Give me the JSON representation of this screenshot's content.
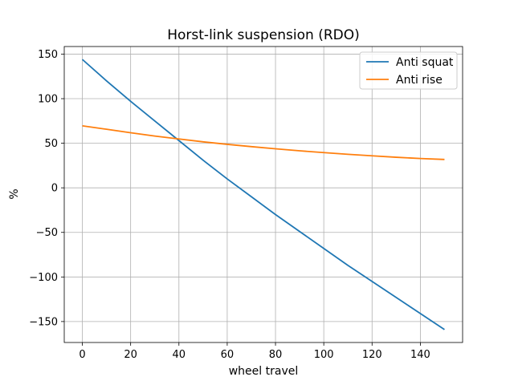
{
  "chart_data": {
    "type": "line",
    "title": "Horst-link suspension (RDO)",
    "xlabel": "wheel travel",
    "ylabel": "%",
    "xlim": [
      -7.5,
      157.5
    ],
    "ylim": [
      -173.5,
      158.5
    ],
    "xticks": [
      0,
      20,
      40,
      60,
      80,
      100,
      120,
      140
    ],
    "yticks": [
      -150,
      -100,
      -50,
      0,
      50,
      100,
      150
    ],
    "grid": true,
    "legend_position": "top-right",
    "series": [
      {
        "name": "Anti squat",
        "color": "#1f77b4",
        "x": [
          0,
          10,
          20,
          30,
          40,
          50,
          60,
          70,
          80,
          90,
          100,
          110,
          120,
          130,
          140,
          150
        ],
        "y": [
          144,
          120,
          97,
          75,
          53,
          31,
          10,
          -10,
          -30,
          -49,
          -68,
          -87,
          -105,
          -123,
          -141,
          -159
        ]
      },
      {
        "name": "Anti rise",
        "color": "#ff7f0e",
        "x": [
          0,
          10,
          20,
          30,
          40,
          50,
          60,
          70,
          80,
          90,
          100,
          110,
          120,
          130,
          140,
          150
        ],
        "y": [
          69.5,
          65.7,
          61.8,
          58.1,
          54.8,
          51.6,
          48.8,
          46.2,
          43.8,
          41.5,
          39.5,
          37.6,
          35.9,
          34.3,
          32.9,
          31.8
        ]
      }
    ]
  }
}
